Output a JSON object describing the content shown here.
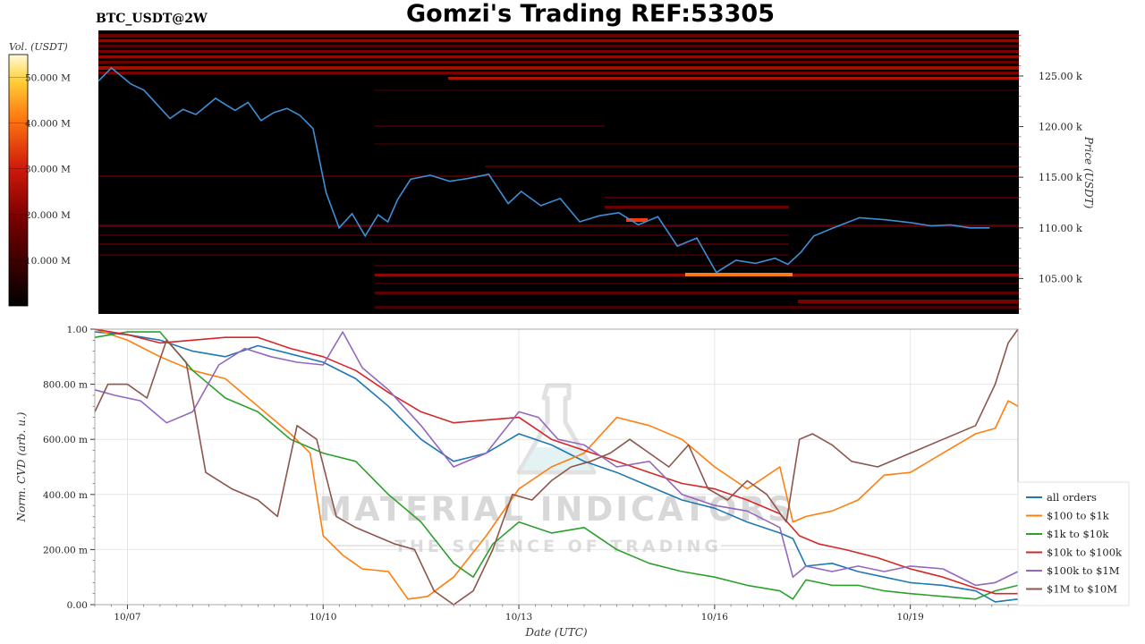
{
  "header": {
    "title": "Gomzi's Trading REF:53305",
    "symbol": "BTC_USDT@2W"
  },
  "watermark": {
    "main": "MATERIAL INDICATORS",
    "sub": "THE SCIENCE OF TRADING"
  },
  "colors": {
    "all_orders": "#1f77b4",
    "r100_1k": "#ff7f0e",
    "r1k_10k": "#2ca02c",
    "r10k_100k": "#d62728",
    "r100k_1m": "#9467bd",
    "r1m_10m": "#8c564b",
    "price_line": "#3d8fd6",
    "heatmap_bg": "#000000"
  },
  "chart_data": [
    {
      "type": "heatmap",
      "ylabel": "Price (USDT)",
      "ylim": [
        101500,
        129500
      ],
      "y_ticks": [
        105000,
        110000,
        115000,
        120000,
        125000
      ],
      "y_tick_labels": [
        "105.00 k",
        "110.00 k",
        "115.00 k",
        "120.00 k",
        "125.00 k"
      ],
      "colorbar": {
        "label": "Vol. (USDT)",
        "range": [
          0,
          55000000
        ],
        "ticks": [
          10000000,
          20000000,
          30000000,
          40000000,
          50000000
        ],
        "tick_labels": [
          "10.000 M",
          "20.000 M",
          "30.000 M",
          "40.000 M",
          "50.000 M"
        ]
      },
      "price_series": {
        "t": [
          6.5,
          6.7,
          7.0,
          7.2,
          7.5,
          7.6,
          7.8,
          8.0,
          8.3,
          8.6,
          8.8,
          9.0,
          9.2,
          9.4,
          9.6,
          9.8,
          10.0,
          10.2,
          10.4,
          10.6,
          10.8,
          10.95,
          11.1,
          11.3,
          11.6,
          11.9,
          12.2,
          12.5,
          12.8,
          13.0,
          13.3,
          13.6,
          13.9,
          14.2,
          14.5,
          14.8,
          15.1,
          15.4,
          15.7,
          16.0,
          16.3,
          16.6,
          16.9,
          17.1,
          17.3,
          17.5,
          17.8,
          18.2,
          18.6,
          19.0,
          19.3,
          19.6,
          19.9,
          20.2
        ],
        "price": [
          124500,
          125800,
          124200,
          123600,
          121500,
          120800,
          121700,
          121200,
          122800,
          121600,
          122400,
          120600,
          121400,
          121800,
          121100,
          119800,
          113500,
          110000,
          111400,
          109200,
          111300,
          110600,
          112800,
          114800,
          115200,
          114600,
          114900,
          115300,
          112400,
          113600,
          112200,
          112900,
          110600,
          111200,
          111500,
          110300,
          111100,
          108200,
          109000,
          105600,
          106800,
          106500,
          107000,
          106400,
          107600,
          109200,
          110000,
          111000,
          110800,
          110500,
          110200,
          110300,
          110000,
          110000
        ]
      }
    },
    {
      "type": "line",
      "xlabel": "Date (UTC)",
      "ylabel": "Norm. CVD (arb. u.)",
      "ylim": [
        0,
        1
      ],
      "xlim": [
        6.5,
        20.65
      ],
      "x_ticks": [
        7,
        10,
        13,
        16,
        19
      ],
      "x_tick_labels": [
        "10/07",
        "10/10",
        "10/13",
        "10/16",
        "10/19"
      ],
      "y_ticks": [
        0,
        0.2,
        0.4,
        0.6,
        0.8,
        1.0
      ],
      "y_tick_labels": [
        "0.00",
        "200.00 m",
        "400.00 m",
        "600.00 m",
        "800.00 m",
        "1.00"
      ],
      "legend_position": "right",
      "series": [
        {
          "name": "all orders",
          "color_key": "all_orders",
          "x": [
            6.5,
            7.0,
            7.5,
            8.0,
            8.5,
            9.0,
            9.5,
            10.0,
            10.5,
            11.0,
            11.5,
            12.0,
            12.5,
            13.0,
            13.5,
            14.0,
            14.5,
            15.0,
            15.5,
            16.0,
            16.5,
            17.0,
            17.2,
            17.4,
            17.8,
            18.2,
            18.6,
            19.0,
            19.5,
            20.0,
            20.3,
            20.65
          ],
          "y": [
            0.99,
            0.98,
            0.96,
            0.92,
            0.9,
            0.94,
            0.91,
            0.88,
            0.82,
            0.72,
            0.6,
            0.52,
            0.55,
            0.62,
            0.58,
            0.52,
            0.48,
            0.43,
            0.38,
            0.35,
            0.3,
            0.26,
            0.24,
            0.14,
            0.15,
            0.12,
            0.1,
            0.08,
            0.07,
            0.05,
            0.01,
            0.02
          ]
        },
        {
          "name": "$100 to $1k",
          "color_key": "r100_1k",
          "x": [
            6.5,
            7.0,
            7.5,
            8.0,
            8.5,
            9.0,
            9.5,
            9.8,
            10.0,
            10.3,
            10.6,
            11.0,
            11.3,
            11.6,
            12.0,
            12.5,
            13.0,
            13.5,
            14.0,
            14.5,
            15.0,
            15.5,
            16.0,
            16.5,
            17.0,
            17.2,
            17.4,
            17.8,
            18.2,
            18.6,
            19.0,
            19.5,
            20.0,
            20.3,
            20.5,
            20.65
          ],
          "y": [
            1.0,
            0.96,
            0.9,
            0.85,
            0.82,
            0.72,
            0.62,
            0.55,
            0.25,
            0.18,
            0.13,
            0.12,
            0.02,
            0.03,
            0.1,
            0.25,
            0.42,
            0.5,
            0.55,
            0.68,
            0.65,
            0.6,
            0.5,
            0.42,
            0.5,
            0.3,
            0.32,
            0.34,
            0.38,
            0.47,
            0.48,
            0.55,
            0.62,
            0.64,
            0.74,
            0.72
          ]
        },
        {
          "name": "$1k to $10k",
          "color_key": "r1k_10k",
          "x": [
            6.5,
            7.0,
            7.5,
            8.0,
            8.5,
            9.0,
            9.5,
            10.0,
            10.5,
            11.0,
            11.5,
            12.0,
            12.3,
            12.6,
            13.0,
            13.5,
            14.0,
            14.5,
            15.0,
            15.5,
            16.0,
            16.5,
            17.0,
            17.2,
            17.4,
            17.8,
            18.2,
            18.6,
            19.0,
            19.5,
            20.0,
            20.3,
            20.65
          ],
          "y": [
            0.97,
            0.99,
            0.99,
            0.85,
            0.75,
            0.7,
            0.6,
            0.55,
            0.52,
            0.4,
            0.3,
            0.15,
            0.1,
            0.22,
            0.3,
            0.26,
            0.28,
            0.2,
            0.15,
            0.12,
            0.1,
            0.07,
            0.05,
            0.02,
            0.09,
            0.07,
            0.07,
            0.05,
            0.04,
            0.03,
            0.02,
            0.05,
            0.07
          ]
        },
        {
          "name": "$10k to $100k",
          "color_key": "r10k_100k",
          "x": [
            6.5,
            7.0,
            7.5,
            8.0,
            8.5,
            9.0,
            9.5,
            10.0,
            10.5,
            11.0,
            11.5,
            12.0,
            12.5,
            13.0,
            13.5,
            14.0,
            14.5,
            15.0,
            15.5,
            16.0,
            16.5,
            17.0,
            17.3,
            17.6,
            18.0,
            18.5,
            19.0,
            19.5,
            20.0,
            20.3,
            20.65
          ],
          "y": [
            1.0,
            0.98,
            0.95,
            0.96,
            0.97,
            0.97,
            0.93,
            0.9,
            0.85,
            0.77,
            0.7,
            0.66,
            0.67,
            0.68,
            0.6,
            0.56,
            0.52,
            0.48,
            0.44,
            0.42,
            0.38,
            0.33,
            0.25,
            0.22,
            0.2,
            0.17,
            0.13,
            0.1,
            0.06,
            0.04,
            0.04
          ]
        },
        {
          "name": "$100k to $1M",
          "color_key": "r100k_1m",
          "x": [
            6.5,
            6.8,
            7.2,
            7.6,
            8.0,
            8.4,
            8.8,
            9.2,
            9.6,
            10.0,
            10.3,
            10.6,
            11.0,
            11.5,
            12.0,
            12.5,
            13.0,
            13.3,
            13.6,
            14.0,
            14.5,
            15.0,
            15.5,
            16.0,
            16.5,
            17.0,
            17.2,
            17.4,
            17.8,
            18.2,
            18.6,
            19.0,
            19.5,
            20.0,
            20.3,
            20.65
          ],
          "y": [
            0.78,
            0.76,
            0.74,
            0.66,
            0.7,
            0.87,
            0.93,
            0.9,
            0.88,
            0.87,
            0.99,
            0.86,
            0.78,
            0.65,
            0.5,
            0.55,
            0.7,
            0.68,
            0.6,
            0.58,
            0.5,
            0.52,
            0.4,
            0.36,
            0.34,
            0.28,
            0.1,
            0.14,
            0.12,
            0.14,
            0.12,
            0.14,
            0.13,
            0.07,
            0.08,
            0.12
          ]
        },
        {
          "name": "$1M to $10M",
          "color_key": "r1m_10m",
          "x": [
            6.5,
            6.7,
            7.0,
            7.3,
            7.6,
            7.9,
            8.2,
            8.6,
            9.0,
            9.3,
            9.6,
            9.9,
            10.2,
            10.5,
            10.8,
            11.1,
            11.4,
            11.7,
            12.0,
            12.3,
            12.6,
            12.9,
            13.2,
            13.5,
            13.8,
            14.1,
            14.4,
            14.7,
            15.0,
            15.3,
            15.6,
            15.9,
            16.2,
            16.5,
            16.8,
            17.1,
            17.3,
            17.5,
            17.8,
            18.1,
            18.5,
            19.0,
            19.5,
            20.0,
            20.3,
            20.5,
            20.65
          ],
          "y": [
            0.7,
            0.8,
            0.8,
            0.75,
            0.96,
            0.88,
            0.48,
            0.42,
            0.38,
            0.32,
            0.65,
            0.6,
            0.32,
            0.28,
            0.25,
            0.22,
            0.2,
            0.05,
            0.0,
            0.05,
            0.2,
            0.4,
            0.38,
            0.45,
            0.5,
            0.52,
            0.55,
            0.6,
            0.55,
            0.5,
            0.58,
            0.42,
            0.38,
            0.45,
            0.4,
            0.3,
            0.6,
            0.62,
            0.58,
            0.52,
            0.5,
            0.55,
            0.6,
            0.65,
            0.8,
            0.95,
            1.0
          ]
        }
      ]
    }
  ]
}
